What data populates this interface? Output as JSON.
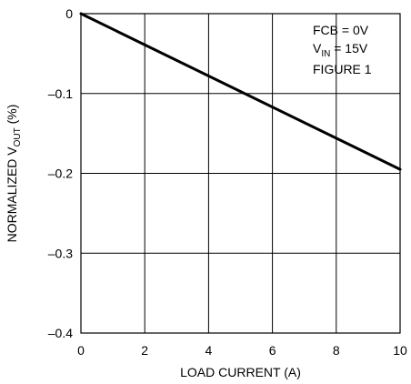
{
  "chart_data": {
    "type": "line",
    "xlabel": "LOAD CURRENT (A)",
    "ylabel": {
      "prefix": "NORMALIZED V",
      "sub": "OUT",
      "suffix": " (%)"
    },
    "xlim": [
      0,
      10
    ],
    "ylim": [
      -0.4,
      0
    ],
    "xticks": [
      0,
      2,
      4,
      6,
      8,
      10
    ],
    "xtick_labels": [
      "0",
      "2",
      "4",
      "6",
      "8",
      "10"
    ],
    "yticks": [
      0,
      -0.1,
      -0.2,
      -0.3,
      -0.4
    ],
    "ytick_labels": [
      "0",
      "–0.1",
      "–0.2",
      "–0.3",
      "–0.4"
    ],
    "grid": true,
    "series": [
      {
        "x": [
          0,
          10
        ],
        "y": [
          0,
          -0.195
        ]
      }
    ],
    "annotations": {
      "line1": "FCB = 0V",
      "line2": {
        "prefix": "V",
        "sub": "IN",
        "suffix": " = 15V"
      },
      "line3": "FIGURE 1"
    }
  }
}
